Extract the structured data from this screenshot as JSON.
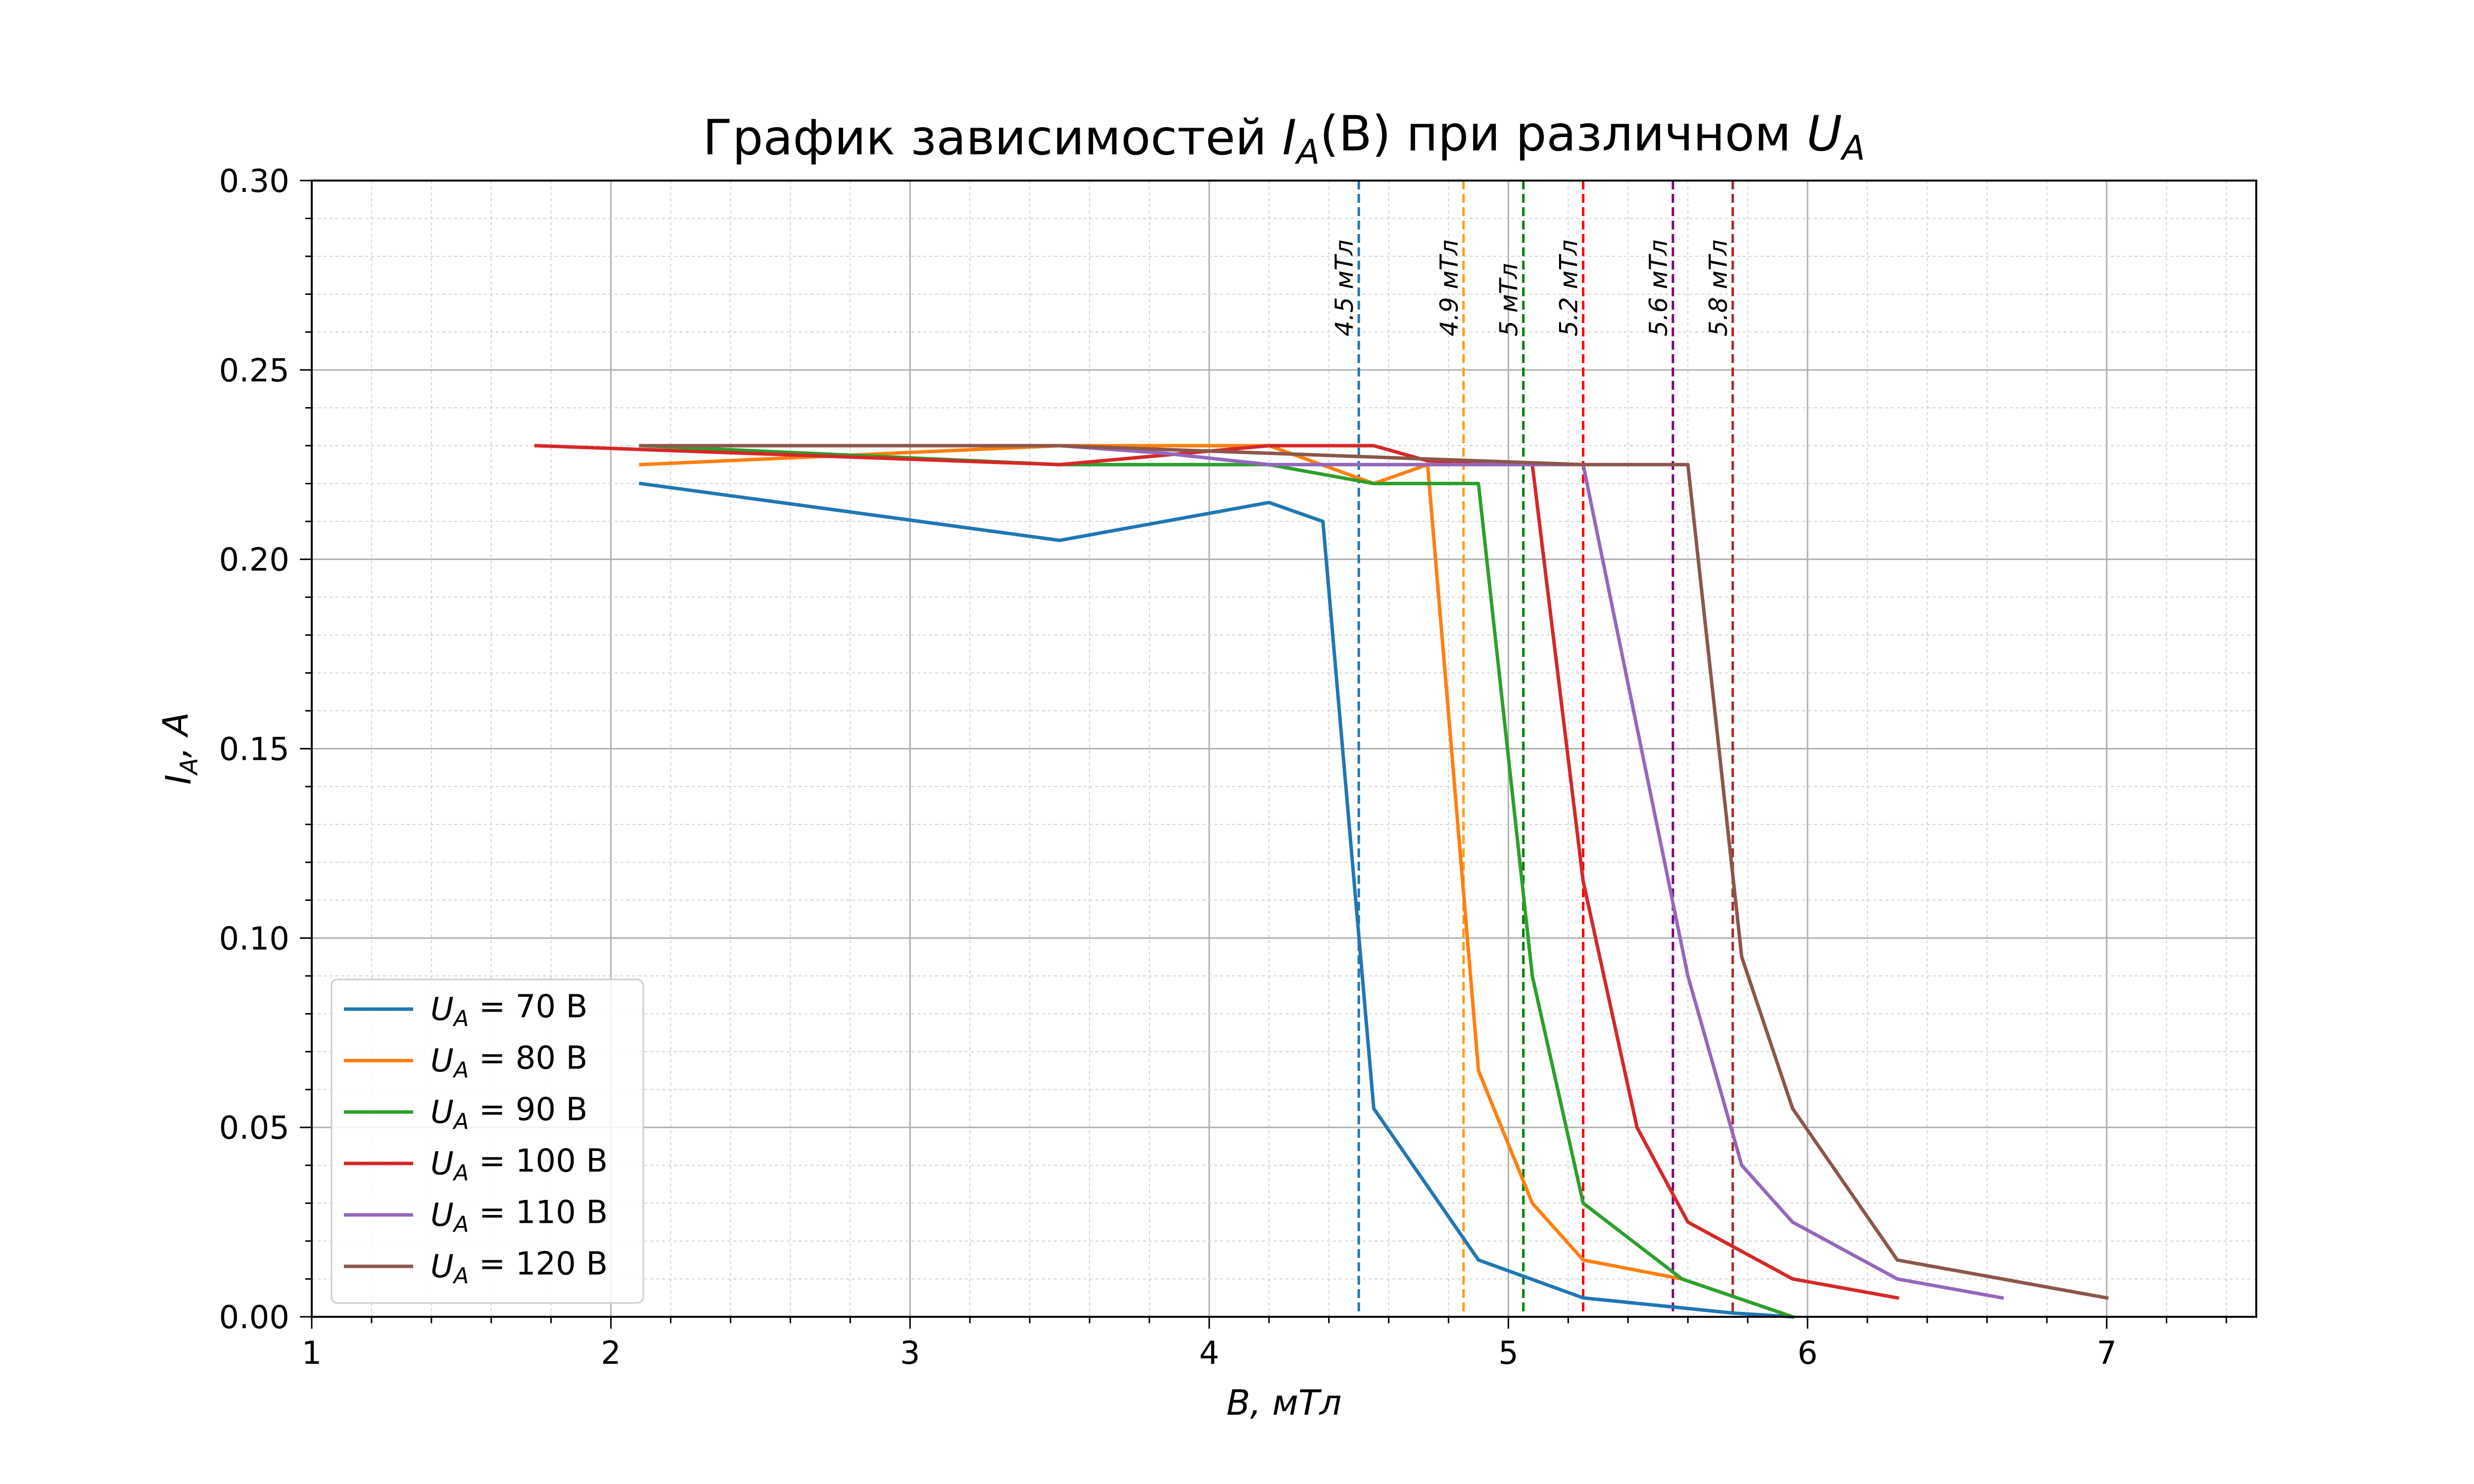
{
  "chart_data": {
    "type": "line",
    "title": "График зависимостей I_A(B) при различном U_A",
    "xlabel": "B, мТл",
    "ylabel": "I_A, A",
    "xlim": [
      1,
      7.5
    ],
    "ylim": [
      0,
      0.3
    ],
    "x_ticks": [
      "1",
      "2",
      "3",
      "4",
      "5",
      "6",
      "7"
    ],
    "y_ticks": [
      "0.00",
      "0.05",
      "0.10",
      "0.15",
      "0.20",
      "0.25",
      "0.30"
    ],
    "grid": true,
    "minor_grid": true,
    "legend_position": "lower-left",
    "series": [
      {
        "name": "U_A = 70 B",
        "color": "#1f77b4",
        "points": [
          [
            2.1,
            0.22
          ],
          [
            3.5,
            0.205
          ],
          [
            4.2,
            0.215
          ],
          [
            4.38,
            0.21
          ],
          [
            4.55,
            0.055
          ],
          [
            4.9,
            0.015
          ],
          [
            5.25,
            0.005
          ],
          [
            5.75,
            0.001
          ],
          [
            5.95,
            0.0
          ]
        ]
      },
      {
        "name": "U_A = 80 B",
        "color": "#ff7f0e",
        "points": [
          [
            2.1,
            0.225
          ],
          [
            3.5,
            0.23
          ],
          [
            4.2,
            0.23
          ],
          [
            4.55,
            0.22
          ],
          [
            4.73,
            0.225
          ],
          [
            4.9,
            0.065
          ],
          [
            5.08,
            0.03
          ],
          [
            5.25,
            0.015
          ],
          [
            5.58,
            0.01
          ]
        ]
      },
      {
        "name": "U_A = 90 B",
        "color": "#2ca02c",
        "points": [
          [
            2.1,
            0.23
          ],
          [
            3.5,
            0.225
          ],
          [
            4.2,
            0.225
          ],
          [
            4.55,
            0.22
          ],
          [
            4.9,
            0.22
          ],
          [
            5.08,
            0.09
          ],
          [
            5.25,
            0.03
          ],
          [
            5.58,
            0.01
          ],
          [
            5.95,
            0.0
          ]
        ]
      },
      {
        "name": "U_A = 100 B",
        "color": "#d62728",
        "points": [
          [
            1.75,
            0.23
          ],
          [
            3.5,
            0.225
          ],
          [
            4.2,
            0.23
          ],
          [
            4.55,
            0.23
          ],
          [
            4.73,
            0.226
          ],
          [
            5.08,
            0.225
          ],
          [
            5.25,
            0.115
          ],
          [
            5.43,
            0.05
          ],
          [
            5.6,
            0.025
          ],
          [
            5.95,
            0.01
          ],
          [
            6.3,
            0.005
          ]
        ]
      },
      {
        "name": "U_A = 110 B",
        "color": "#9467bd",
        "points": [
          [
            2.1,
            0.23
          ],
          [
            3.5,
            0.23
          ],
          [
            3.85,
            0.228
          ],
          [
            4.2,
            0.225
          ],
          [
            5.25,
            0.225
          ],
          [
            5.6,
            0.09
          ],
          [
            5.78,
            0.04
          ],
          [
            5.95,
            0.025
          ],
          [
            6.3,
            0.01
          ],
          [
            6.65,
            0.005
          ]
        ]
      },
      {
        "name": "U_A = 120 B",
        "color": "#8c564b",
        "points": [
          [
            2.1,
            0.23
          ],
          [
            3.5,
            0.23
          ],
          [
            4.2,
            0.228
          ],
          [
            5.25,
            0.225
          ],
          [
            5.6,
            0.225
          ],
          [
            5.78,
            0.095
          ],
          [
            5.95,
            0.055
          ],
          [
            6.3,
            0.015
          ],
          [
            7.0,
            0.005
          ]
        ]
      }
    ],
    "annotations": [
      {
        "x": 4.5,
        "label": "4.5 мТл",
        "color": "#1f77b4",
        "style": "dashed"
      },
      {
        "x": 4.85,
        "label": "4.9 мТл",
        "color": "#ff9f1a",
        "style": "dashed"
      },
      {
        "x": 5.05,
        "label": "5 мТл",
        "color": "#008000",
        "style": "dashed"
      },
      {
        "x": 5.25,
        "label": "5.2 мТл",
        "color": "#ff0000",
        "style": "dashed"
      },
      {
        "x": 5.55,
        "label": "5.6 мТл",
        "color": "#800080",
        "style": "dashed"
      },
      {
        "x": 5.75,
        "label": "5.8 мТл",
        "color": "#a52a2a",
        "style": "dashed"
      }
    ]
  }
}
